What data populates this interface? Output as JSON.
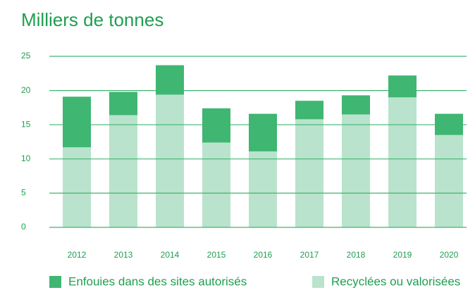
{
  "chart_data": {
    "type": "stacked_bar",
    "title": "Milliers de tonnes",
    "categories": [
      "2012",
      "2013",
      "2014",
      "2015",
      "2016",
      "2017",
      "2018",
      "2019",
      "2020"
    ],
    "series": [
      {
        "name": "Recyclées ou valorisées",
        "color": "#b9e3cc",
        "values": [
          11.7,
          16.4,
          19.4,
          12.4,
          11.1,
          15.8,
          16.5,
          19.0,
          13.5
        ]
      },
      {
        "name": "Enfouies dans des sites autorisés",
        "color": "#3fb672",
        "values": [
          7.4,
          3.4,
          4.3,
          5.0,
          5.5,
          2.7,
          2.8,
          3.2,
          3.1
        ]
      }
    ],
    "ylim": [
      0,
      25
    ],
    "yticks": [
      0,
      5,
      10,
      15,
      20,
      25
    ],
    "grid": true
  }
}
